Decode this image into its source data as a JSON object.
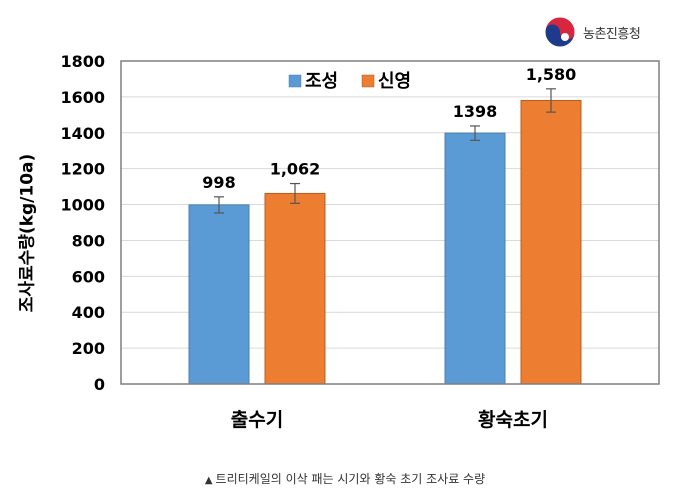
{
  "logo": {
    "text": "농촌진흥청",
    "icon": "taegeuk-logo-icon"
  },
  "caption": {
    "marker": "▲",
    "text": "트리티케일의 이삭 패는 시기와 황숙 초기 조사료 수량"
  },
  "colors": {
    "series1": "#5B9BD5",
    "series2": "#ED7D31",
    "frame": "#7F7F7F",
    "grid": "#D9D9D9"
  },
  "chart_data": {
    "type": "bar",
    "ylabel": "조사료수량(kg/10a)",
    "xlabel": "",
    "categories": [
      "출수기",
      "황숙초기"
    ],
    "ylim": [
      0,
      1800
    ],
    "yticks": [
      0,
      200,
      400,
      600,
      800,
      1000,
      1200,
      1400,
      1600,
      1800
    ],
    "grid": true,
    "legend": "top-center",
    "series": [
      {
        "name": "조성",
        "values": [
          998,
          1398
        ],
        "labels": [
          "998",
          "1398"
        ],
        "errors": [
          45,
          40
        ]
      },
      {
        "name": "신영",
        "values": [
          1062,
          1580
        ],
        "labels": [
          "1,062",
          "1,580"
        ],
        "errors": [
          55,
          65
        ]
      }
    ]
  }
}
